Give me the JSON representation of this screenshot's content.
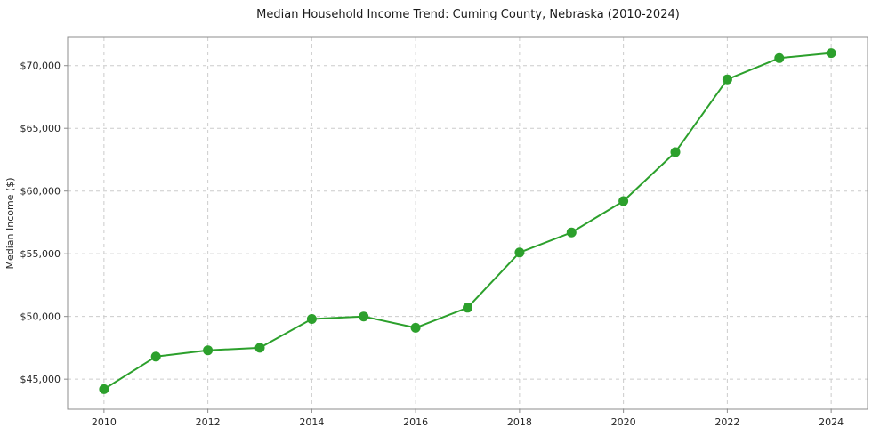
{
  "chart_data": {
    "type": "line",
    "title": "Median Household Income Trend: Cuming County, Nebraska (2010-2024)",
    "xlabel": "",
    "ylabel": "Median Income ($)",
    "x": [
      2010,
      2011,
      2012,
      2013,
      2014,
      2015,
      2016,
      2017,
      2018,
      2019,
      2020,
      2021,
      2022,
      2023,
      2024
    ],
    "series": [
      {
        "name": "Median Household Income",
        "values": [
          44200,
          46800,
          47300,
          47500,
          49800,
          50000,
          49100,
          50700,
          55100,
          56700,
          59200,
          63100,
          68900,
          70600,
          71000
        ]
      }
    ],
    "xlim": [
      2009.3,
      2024.7
    ],
    "ylim": [
      42600,
      72250
    ],
    "xticks": [
      2010,
      2012,
      2014,
      2016,
      2018,
      2020,
      2022,
      2024
    ],
    "yticks": [
      45000,
      50000,
      55000,
      60000,
      65000,
      70000
    ],
    "ytick_prefix": "$",
    "grid": true,
    "grid_style": "dashed",
    "legend_position": "none",
    "line_color": "#2ca02c",
    "marker_color": "#2ca02c",
    "grid_color": "#cccccc",
    "axis_color": "#8c8c8c",
    "text_color": "#262626"
  }
}
